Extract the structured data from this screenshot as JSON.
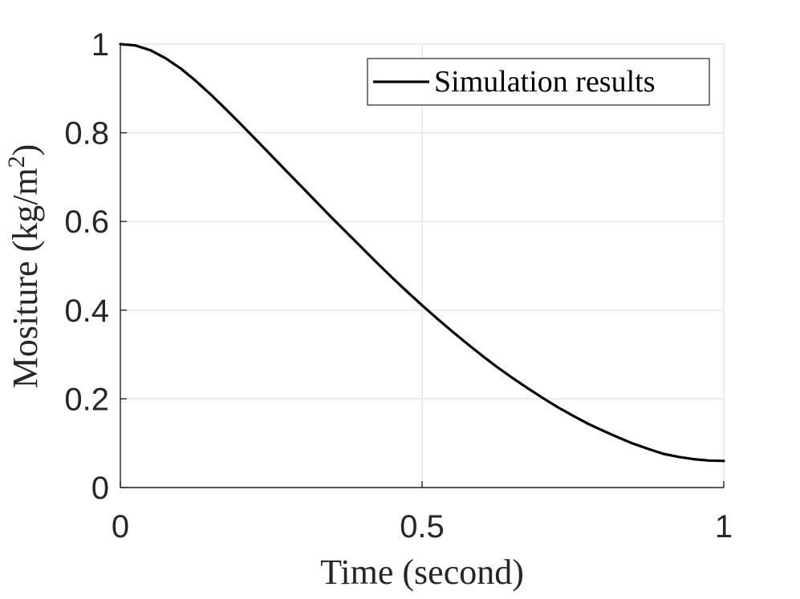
{
  "chart_data": {
    "type": "line",
    "title": "",
    "xlabel": "Time (second)",
    "ylabel": {
      "text": "Mositure (kg/m",
      "superscript": "2",
      "suffix": ")"
    },
    "xlim": [
      0,
      1
    ],
    "ylim": [
      0,
      1
    ],
    "xticks": [
      0,
      0.5,
      1
    ],
    "xtick_labels": [
      "0",
      "0.5",
      "1"
    ],
    "yticks": [
      0,
      0.2,
      0.4,
      0.6,
      0.8,
      1
    ],
    "ytick_labels": [
      "0",
      "0.2",
      "0.4",
      "0.6",
      "0.8",
      "1"
    ],
    "grid": true,
    "legend": {
      "position": "top-right",
      "entries": [
        "Simulation results"
      ]
    },
    "series": [
      {
        "name": "Simulation results",
        "color": "#000000",
        "x": [
          0,
          0.025,
          0.05,
          0.075,
          0.1,
          0.125,
          0.15,
          0.175,
          0.2,
          0.225,
          0.25,
          0.275,
          0.3,
          0.325,
          0.35,
          0.375,
          0.4,
          0.425,
          0.45,
          0.475,
          0.5,
          0.525,
          0.55,
          0.575,
          0.6,
          0.625,
          0.65,
          0.675,
          0.7,
          0.725,
          0.75,
          0.775,
          0.8,
          0.825,
          0.85,
          0.875,
          0.9,
          0.925,
          0.95,
          0.975,
          1.0
        ],
        "y": [
          1.0,
          0.997,
          0.986,
          0.968,
          0.945,
          0.917,
          0.886,
          0.853,
          0.819,
          0.784,
          0.749,
          0.714,
          0.679,
          0.644,
          0.609,
          0.575,
          0.541,
          0.507,
          0.474,
          0.442,
          0.411,
          0.381,
          0.352,
          0.324,
          0.297,
          0.271,
          0.247,
          0.224,
          0.202,
          0.181,
          0.162,
          0.144,
          0.128,
          0.113,
          0.099,
          0.087,
          0.076,
          0.069,
          0.064,
          0.061,
          0.06
        ]
      }
    ]
  }
}
